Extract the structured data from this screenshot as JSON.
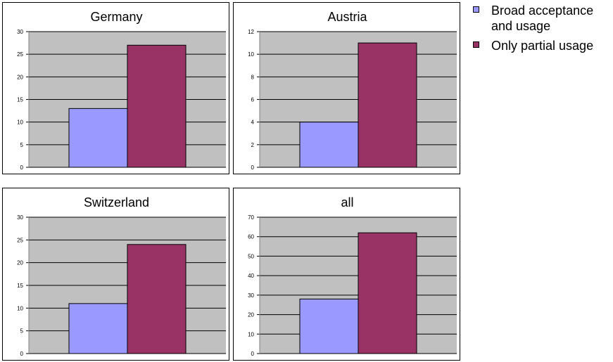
{
  "legend": {
    "items": [
      {
        "label": "Broad acceptance and usage",
        "color": "#9999ff"
      },
      {
        "label": "Only partial usage",
        "color": "#993366"
      }
    ]
  },
  "chart_data": [
    {
      "type": "bar",
      "title": "Germany",
      "series": [
        {
          "name": "Broad acceptance and usage",
          "values": [
            13
          ]
        },
        {
          "name": "Only partial usage",
          "values": [
            27
          ]
        }
      ],
      "ylim": [
        0,
        30
      ],
      "yticks": [
        0,
        5,
        10,
        15,
        20,
        25,
        30
      ],
      "grid": true,
      "legend": "top-right"
    },
    {
      "type": "bar",
      "title": "Austria",
      "series": [
        {
          "name": "Broad acceptance and usage",
          "values": [
            4
          ]
        },
        {
          "name": "Only partial usage",
          "values": [
            11
          ]
        }
      ],
      "ylim": [
        0,
        12
      ],
      "yticks": [
        0,
        2,
        4,
        6,
        8,
        10,
        12
      ],
      "grid": true,
      "legend": "top-right"
    },
    {
      "type": "bar",
      "title": "Switzerland",
      "series": [
        {
          "name": "Broad acceptance and usage",
          "values": [
            11
          ]
        },
        {
          "name": "Only partial usage",
          "values": [
            24
          ]
        }
      ],
      "ylim": [
        0,
        30
      ],
      "yticks": [
        0,
        5,
        10,
        15,
        20,
        25,
        30
      ],
      "grid": true,
      "legend": "top-right"
    },
    {
      "type": "bar",
      "title": "all",
      "series": [
        {
          "name": "Broad acceptance and usage",
          "values": [
            28
          ]
        },
        {
          "name": "Only partial usage",
          "values": [
            62
          ]
        }
      ],
      "ylim": [
        0,
        70
      ],
      "yticks": [
        0,
        10,
        20,
        30,
        40,
        50,
        60,
        70
      ],
      "grid": true,
      "legend": "top-right"
    }
  ]
}
